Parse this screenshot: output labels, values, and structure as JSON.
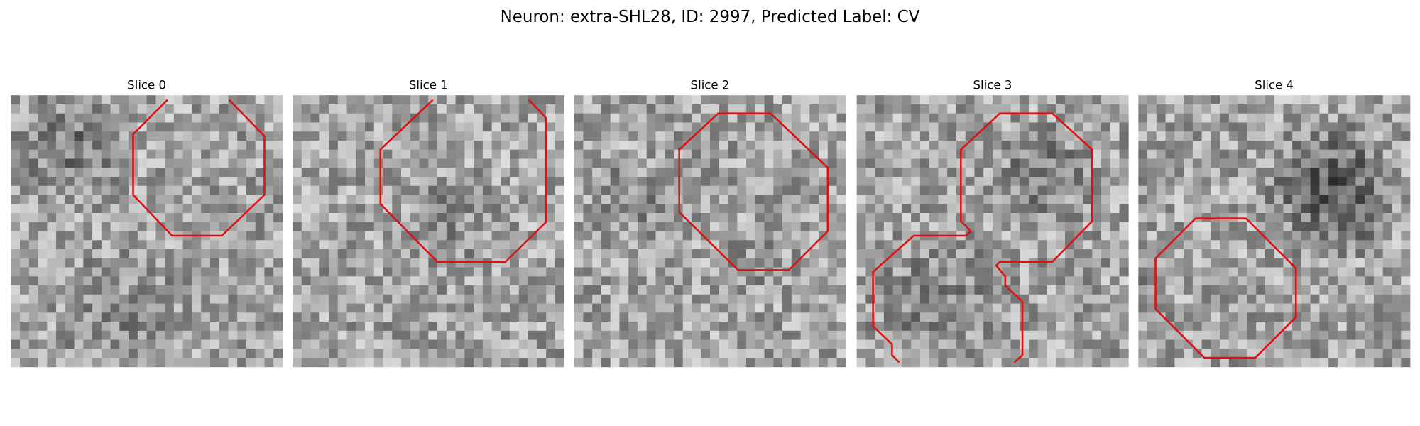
{
  "title": "Neuron: extra-SHL28, ID: 2997, Predicted Label: CV",
  "panels": [
    {
      "title": "Slice 0"
    },
    {
      "title": "Slice 1"
    },
    {
      "title": "Slice 2"
    },
    {
      "title": "Slice 3"
    },
    {
      "title": "Slice 4"
    }
  ]
}
